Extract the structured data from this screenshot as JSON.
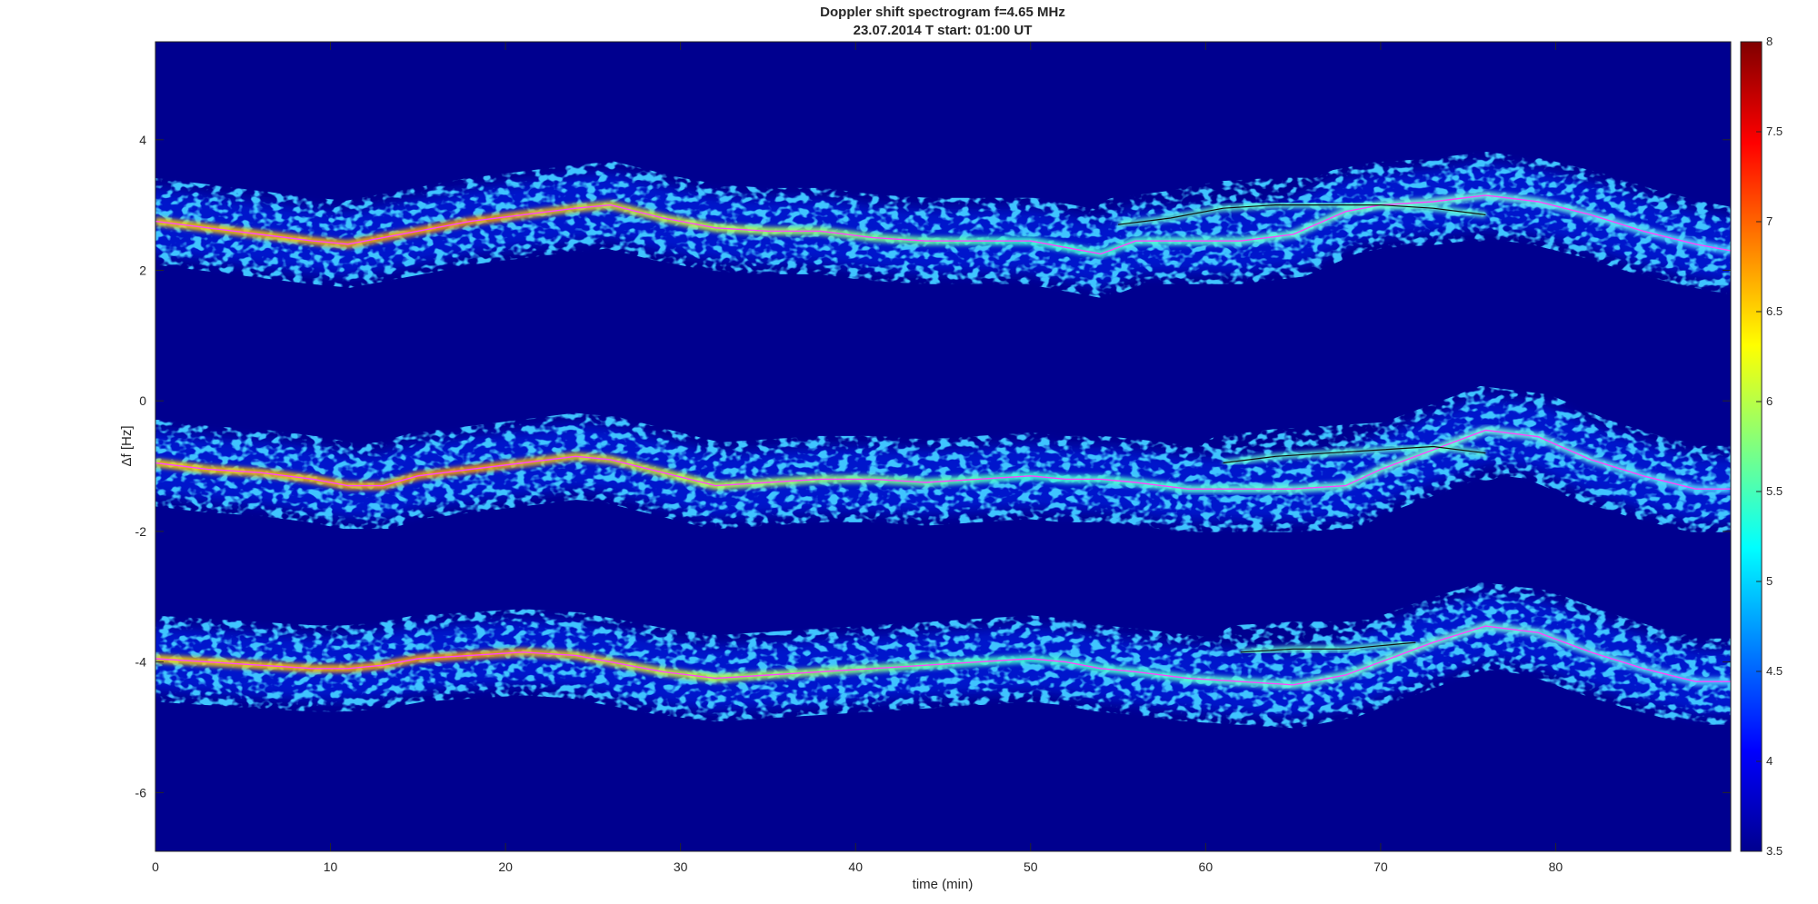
{
  "chart_data": {
    "type": "heatmap",
    "title": "Doppler shift spectrogram f=4.65 MHz",
    "subtitle": "23.07.2014   T start: 01:00 UT",
    "xlabel": "time (min)",
    "ylabel": "Δf [Hz]",
    "xlim": [
      0,
      90
    ],
    "ylim": [
      -6.9,
      5.5
    ],
    "x_ticks": [
      0,
      10,
      20,
      30,
      40,
      50,
      60,
      70,
      80
    ],
    "y_ticks": [
      4,
      2,
      0,
      -2,
      -4,
      -6
    ],
    "colorbar": {
      "colormap": "jet",
      "range": [
        3.5,
        8
      ],
      "ticks": [
        8,
        7.5,
        7,
        6.5,
        6,
        5.5,
        5,
        4.5,
        4,
        3.5
      ]
    },
    "background_color": "#00008f",
    "traces": [
      {
        "name": "",
        "x": [
          0,
          3,
          6,
          9,
          11,
          13,
          15,
          18,
          21,
          24,
          26,
          29,
          32,
          35,
          38,
          41,
          44,
          47,
          50,
          52,
          54,
          56,
          59,
          62,
          65,
          68,
          70,
          73,
          76,
          79,
          82,
          85,
          88,
          90
        ],
        "y": [
          2.75,
          2.65,
          2.55,
          2.45,
          2.4,
          2.5,
          2.6,
          2.75,
          2.85,
          2.95,
          3.0,
          2.8,
          2.65,
          2.6,
          2.6,
          2.5,
          2.45,
          2.45,
          2.45,
          2.35,
          2.25,
          2.45,
          2.45,
          2.45,
          2.55,
          2.9,
          3.0,
          3.05,
          3.15,
          3.05,
          2.85,
          2.6,
          2.4,
          2.3
        ]
      },
      {
        "name": "",
        "x": [
          0,
          3,
          6,
          9,
          11,
          13,
          15,
          18,
          21,
          24,
          26,
          29,
          32,
          35,
          38,
          41,
          44,
          47,
          50,
          52,
          54,
          56,
          59,
          62,
          65,
          68,
          70,
          73,
          76,
          79,
          82,
          85,
          88,
          90
        ],
        "y": [
          -0.95,
          -1.05,
          -1.1,
          -1.2,
          -1.3,
          -1.3,
          -1.15,
          -1.05,
          -0.95,
          -0.85,
          -0.9,
          -1.1,
          -1.3,
          -1.25,
          -1.2,
          -1.2,
          -1.25,
          -1.2,
          -1.15,
          -1.2,
          -1.2,
          -1.25,
          -1.35,
          -1.35,
          -1.35,
          -1.3,
          -1.05,
          -0.75,
          -0.45,
          -0.55,
          -0.9,
          -1.15,
          -1.35,
          -1.35
        ]
      },
      {
        "name": "",
        "x": [
          0,
          3,
          6,
          9,
          11,
          13,
          15,
          18,
          21,
          24,
          26,
          29,
          32,
          35,
          38,
          41,
          44,
          47,
          50,
          52,
          54,
          56,
          59,
          62,
          65,
          68,
          70,
          73,
          76,
          79,
          82,
          85,
          88,
          90
        ],
        "y": [
          -3.95,
          -4.0,
          -4.05,
          -4.1,
          -4.1,
          -4.05,
          -3.95,
          -3.9,
          -3.85,
          -3.9,
          -4.0,
          -4.15,
          -4.25,
          -4.2,
          -4.15,
          -4.1,
          -4.05,
          -4.0,
          -3.95,
          -4.0,
          -4.1,
          -4.15,
          -4.25,
          -4.3,
          -4.35,
          -4.2,
          -4.0,
          -3.7,
          -3.45,
          -3.55,
          -3.85,
          -4.1,
          -4.3,
          -4.3
        ]
      }
    ],
    "upper_branches": [
      {
        "x": [
          55,
          58,
          61,
          64,
          67,
          70,
          73,
          76
        ],
        "y": [
          2.7,
          2.8,
          2.95,
          3.0,
          3.0,
          3.0,
          2.95,
          2.85
        ]
      },
      {
        "x": [
          61,
          64,
          67,
          70,
          73,
          76
        ],
        "y": [
          -0.95,
          -0.85,
          -0.8,
          -0.75,
          -0.7,
          -0.8
        ]
      },
      {
        "x": [
          62,
          65,
          68,
          70,
          72
        ],
        "y": [
          -3.85,
          -3.8,
          -3.8,
          -3.75,
          -3.7
        ]
      }
    ]
  }
}
